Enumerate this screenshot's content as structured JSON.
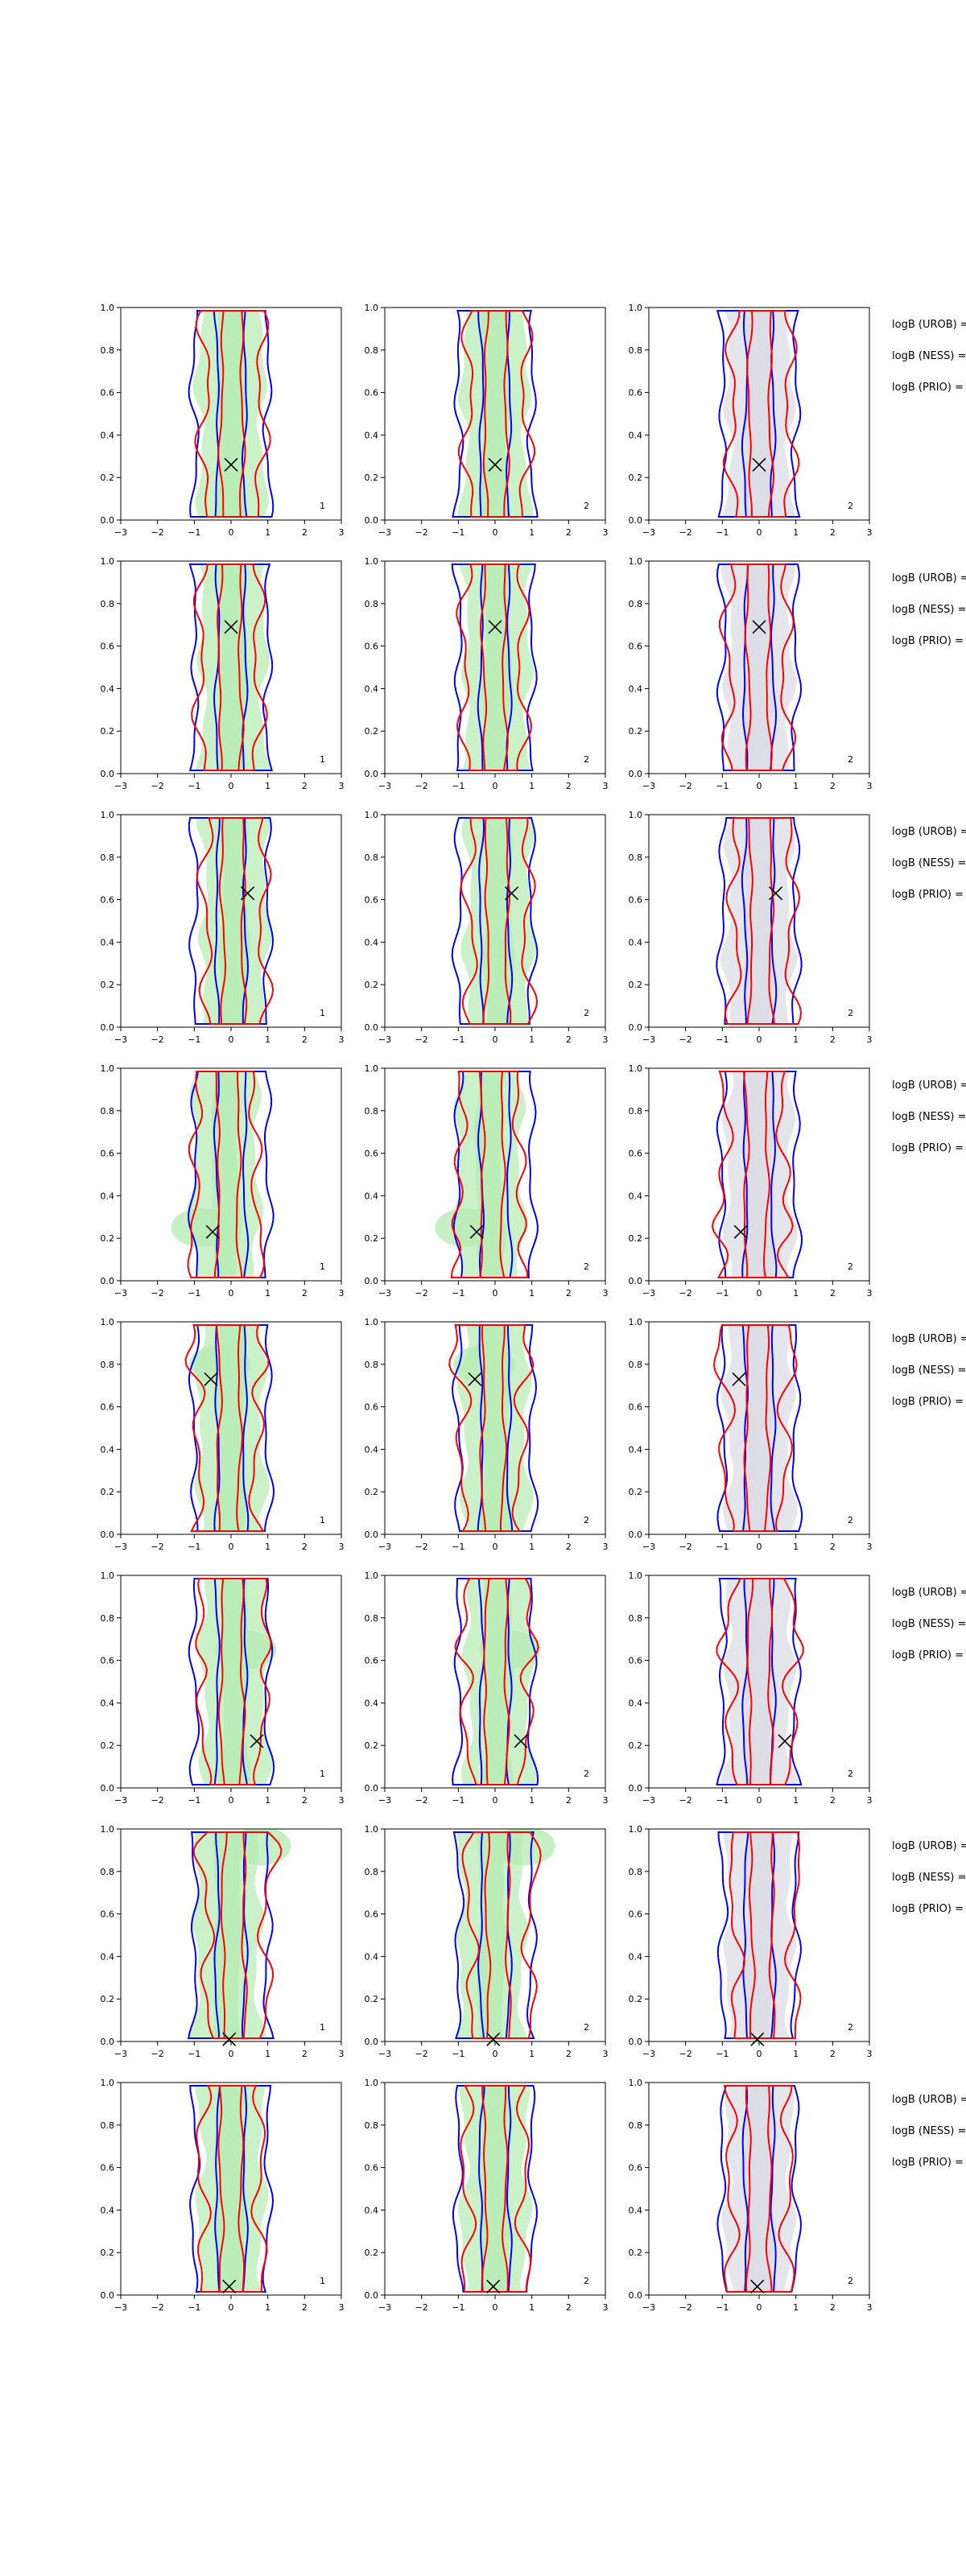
{
  "chart_data": {
    "type": "contour",
    "grid": false,
    "axes": {
      "xlim": [
        -3,
        3
      ],
      "ylim": [
        0.0,
        1.0
      ],
      "xticks": [
        "−3",
        "−2",
        "−1",
        "0",
        "1",
        "2",
        "3"
      ],
      "yticks": [
        "0.0",
        "0.2",
        "0.4",
        "0.6",
        "0.8",
        "1.0"
      ]
    },
    "columns": [
      {
        "fill": "#b8ecb5",
        "corner_label": "1"
      },
      {
        "fill": "#b8ecb5",
        "corner_label": "2"
      },
      {
        "fill": "#dcdce6",
        "corner_label": "2"
      }
    ],
    "line_colors": {
      "blue": "#0000ff",
      "red": "#ff0000",
      "marker": "#000000"
    },
    "logB_labels": [
      "logB (UROB) =",
      "logB (NESS) =",
      "logB (PRIO) ="
    ],
    "rows": [
      {
        "marker": [
          0.0,
          0.26
        ],
        "red_shift": 0.05,
        "green_shift": 0.0,
        "blob": null
      },
      {
        "marker": [
          0.0,
          0.69
        ],
        "red_shift": -0.05,
        "green_shift": 0.05,
        "blob": null
      },
      {
        "marker": [
          0.45,
          0.63
        ],
        "red_shift": 0.1,
        "green_shift": 0.1,
        "blob": null
      },
      {
        "marker": [
          -0.5,
          0.23
        ],
        "red_shift": -0.15,
        "green_shift": -0.15,
        "blob": [
          -0.8,
          0.25
        ]
      },
      {
        "marker": [
          -0.55,
          0.73
        ],
        "red_shift": -0.1,
        "green_shift": 0.0,
        "blob": [
          -0.3,
          0.8
        ]
      },
      {
        "marker": [
          0.7,
          0.22
        ],
        "red_shift": 0.05,
        "green_shift": 0.1,
        "blob": [
          0.4,
          0.65
        ]
      },
      {
        "marker": [
          -0.05,
          0.01
        ],
        "red_shift": 0.15,
        "green_shift": -0.1,
        "blob": [
          0.8,
          0.92
        ]
      },
      {
        "marker": [
          -0.05,
          0.04
        ],
        "red_shift": 0.0,
        "green_shift": 0.0,
        "blob": null
      }
    ]
  }
}
